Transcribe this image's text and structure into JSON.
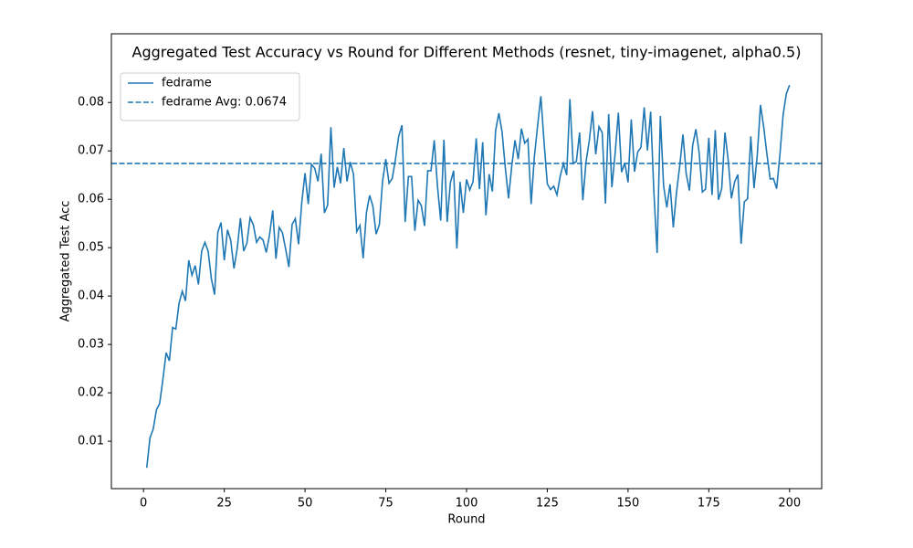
{
  "chart_data": {
    "type": "line",
    "title": "Aggregated Test Accuracy vs Round for Different Methods (resnet, tiny-imagenet, alpha0.5)",
    "x_label": "Round",
    "y_label": "Aggregated Test Acc",
    "x": [
      1,
      2,
      3,
      4,
      5,
      6,
      7,
      8,
      9,
      10,
      11,
      12,
      13,
      14,
      15,
      16,
      17,
      18,
      19,
      20,
      21,
      22,
      23,
      24,
      25,
      26,
      27,
      28,
      29,
      30,
      31,
      32,
      33,
      34,
      35,
      36,
      37,
      38,
      39,
      40,
      41,
      42,
      43,
      44,
      45,
      46,
      47,
      48,
      49,
      50,
      51,
      52,
      53,
      54,
      55,
      56,
      57,
      58,
      59,
      60,
      61,
      62,
      63,
      64,
      65,
      66,
      67,
      68,
      69,
      70,
      71,
      72,
      73,
      74,
      75,
      76,
      77,
      78,
      79,
      80,
      81,
      82,
      83,
      84,
      85,
      86,
      87,
      88,
      89,
      90,
      91,
      92,
      93,
      94,
      95,
      96,
      97,
      98,
      99,
      100,
      101,
      102,
      103,
      104,
      105,
      106,
      107,
      108,
      109,
      110,
      111,
      112,
      113,
      114,
      115,
      116,
      117,
      118,
      119,
      120,
      121,
      122,
      123,
      124,
      125,
      126,
      127,
      128,
      129,
      130,
      131,
      132,
      133,
      134,
      135,
      136,
      137,
      138,
      139,
      140,
      141,
      142,
      143,
      144,
      145,
      146,
      147,
      148,
      149,
      150,
      151,
      152,
      153,
      154,
      155,
      156,
      157,
      158,
      159,
      160,
      161,
      162,
      163,
      164,
      165,
      166,
      167,
      168,
      169,
      170,
      171,
      172,
      173,
      174,
      175,
      176,
      177,
      178,
      179,
      180,
      181,
      182,
      183,
      184,
      185,
      186,
      187,
      188,
      189,
      190,
      191,
      192,
      193,
      194,
      195,
      196,
      197,
      198,
      199,
      200
    ],
    "series": [
      {
        "name": "fedrame",
        "color": "#1f77b4",
        "values": [
          0.0045,
          0.0107,
          0.0125,
          0.0165,
          0.0178,
          0.0228,
          0.0283,
          0.0266,
          0.0335,
          0.0332,
          0.0385,
          0.041,
          0.039,
          0.0474,
          0.0443,
          0.0463,
          0.0424,
          0.0493,
          0.0511,
          0.0493,
          0.0436,
          0.0403,
          0.0532,
          0.0552,
          0.0474,
          0.0537,
          0.0515,
          0.0457,
          0.0498,
          0.0561,
          0.0493,
          0.0509,
          0.0562,
          0.0547,
          0.0511,
          0.0522,
          0.0516,
          0.049,
          0.0526,
          0.0577,
          0.0477,
          0.0542,
          0.0531,
          0.0497,
          0.046,
          0.0548,
          0.056,
          0.0507,
          0.0594,
          0.0654,
          0.059,
          0.0672,
          0.0664,
          0.0637,
          0.0694,
          0.0572,
          0.0588,
          0.0749,
          0.0624,
          0.0667,
          0.0633,
          0.0706,
          0.0637,
          0.0677,
          0.0652,
          0.0533,
          0.0546,
          0.0478,
          0.0572,
          0.0608,
          0.0586,
          0.0528,
          0.0547,
          0.0637,
          0.0683,
          0.0633,
          0.0643,
          0.0683,
          0.073,
          0.0753,
          0.0553,
          0.0647,
          0.0647,
          0.0535,
          0.0598,
          0.0587,
          0.0545,
          0.0659,
          0.0659,
          0.0722,
          0.0627,
          0.0556,
          0.0723,
          0.0553,
          0.0634,
          0.0659,
          0.0498,
          0.0636,
          0.0572,
          0.0641,
          0.0619,
          0.0636,
          0.0726,
          0.0621,
          0.0718,
          0.0567,
          0.0652,
          0.0616,
          0.0742,
          0.0778,
          0.0739,
          0.0665,
          0.0602,
          0.0669,
          0.0722,
          0.0683,
          0.0746,
          0.0716,
          0.0724,
          0.059,
          0.0688,
          0.0752,
          0.0813,
          0.0718,
          0.0632,
          0.062,
          0.0627,
          0.0609,
          0.0648,
          0.0674,
          0.065,
          0.0807,
          0.0674,
          0.0678,
          0.0738,
          0.0598,
          0.0678,
          0.0721,
          0.0782,
          0.0693,
          0.075,
          0.0738,
          0.0591,
          0.0776,
          0.0625,
          0.0695,
          0.0779,
          0.0656,
          0.0675,
          0.0635,
          0.0765,
          0.0657,
          0.0698,
          0.0707,
          0.079,
          0.0701,
          0.0781,
          0.0615,
          0.0489,
          0.0772,
          0.0628,
          0.0583,
          0.0631,
          0.0542,
          0.0614,
          0.0669,
          0.0734,
          0.0653,
          0.0618,
          0.0711,
          0.0745,
          0.0697,
          0.0615,
          0.0621,
          0.0727,
          0.0609,
          0.0743,
          0.0599,
          0.0622,
          0.0738,
          0.0681,
          0.0602,
          0.0636,
          0.0651,
          0.0508,
          0.0595,
          0.0601,
          0.073,
          0.0623,
          0.0691,
          0.0795,
          0.0749,
          0.0693,
          0.0642,
          0.0643,
          0.0622,
          0.0691,
          0.0774,
          0.0818,
          0.0836
        ]
      }
    ],
    "reference_lines": [
      {
        "name": "fedrame Avg: 0.0674",
        "value": 0.0674,
        "color": "#1f77b4",
        "style": "dashed"
      }
    ],
    "xlim": [
      -9.95,
      209.95
    ],
    "ylim": [
      0.0002,
      0.0942
    ],
    "xticks": [
      0,
      25,
      50,
      75,
      100,
      125,
      150,
      175,
      200
    ],
    "yticks": [
      0.01,
      0.02,
      0.03,
      0.04,
      0.05,
      0.06,
      0.07,
      0.08
    ],
    "grid": false,
    "legend": "upper left"
  }
}
